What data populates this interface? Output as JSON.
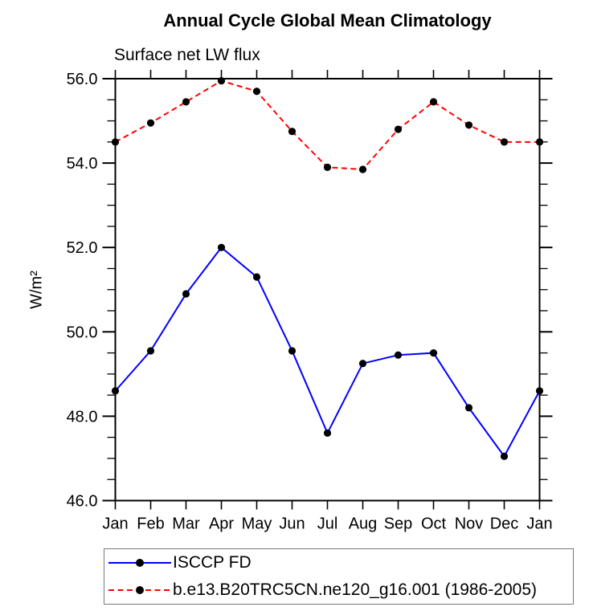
{
  "chart_data": {
    "type": "line",
    "title": "Annual Cycle Global Mean Climatology",
    "subtitle": "Surface net LW flux",
    "xlabel": "",
    "ylabel": "W/m²",
    "categories": [
      "Jan",
      "Feb",
      "Mar",
      "Apr",
      "May",
      "Jun",
      "Jul",
      "Aug",
      "Sep",
      "Oct",
      "Nov",
      "Dec",
      "Jan"
    ],
    "ylim": [
      46.0,
      56.0
    ],
    "ytick_major": [
      46.0,
      48.0,
      50.0,
      52.0,
      54.0,
      56.0
    ],
    "ytick_minor_step": 0.5,
    "grid": false,
    "legend_position": "bottom",
    "axis_color": "#000000",
    "legend_border_color": "#787878",
    "series": [
      {
        "name": "ISCCP FD",
        "color": "#0000ff",
        "line_style": "solid",
        "marker": "circle",
        "marker_color": "#000000",
        "values": [
          48.6,
          49.55,
          50.9,
          52.0,
          51.3,
          49.55,
          47.6,
          49.25,
          49.45,
          49.5,
          48.2,
          47.05,
          48.6
        ]
      },
      {
        "name": "b.e13.B20TRC5CN.ne120_g16.001 (1986-2005)",
        "color": "#ff0000",
        "line_style": "dashed",
        "marker": "circle",
        "marker_color": "#000000",
        "values": [
          54.5,
          54.95,
          55.45,
          55.95,
          55.7,
          54.75,
          53.9,
          53.85,
          54.8,
          55.45,
          54.9,
          54.5,
          54.5
        ]
      }
    ]
  }
}
